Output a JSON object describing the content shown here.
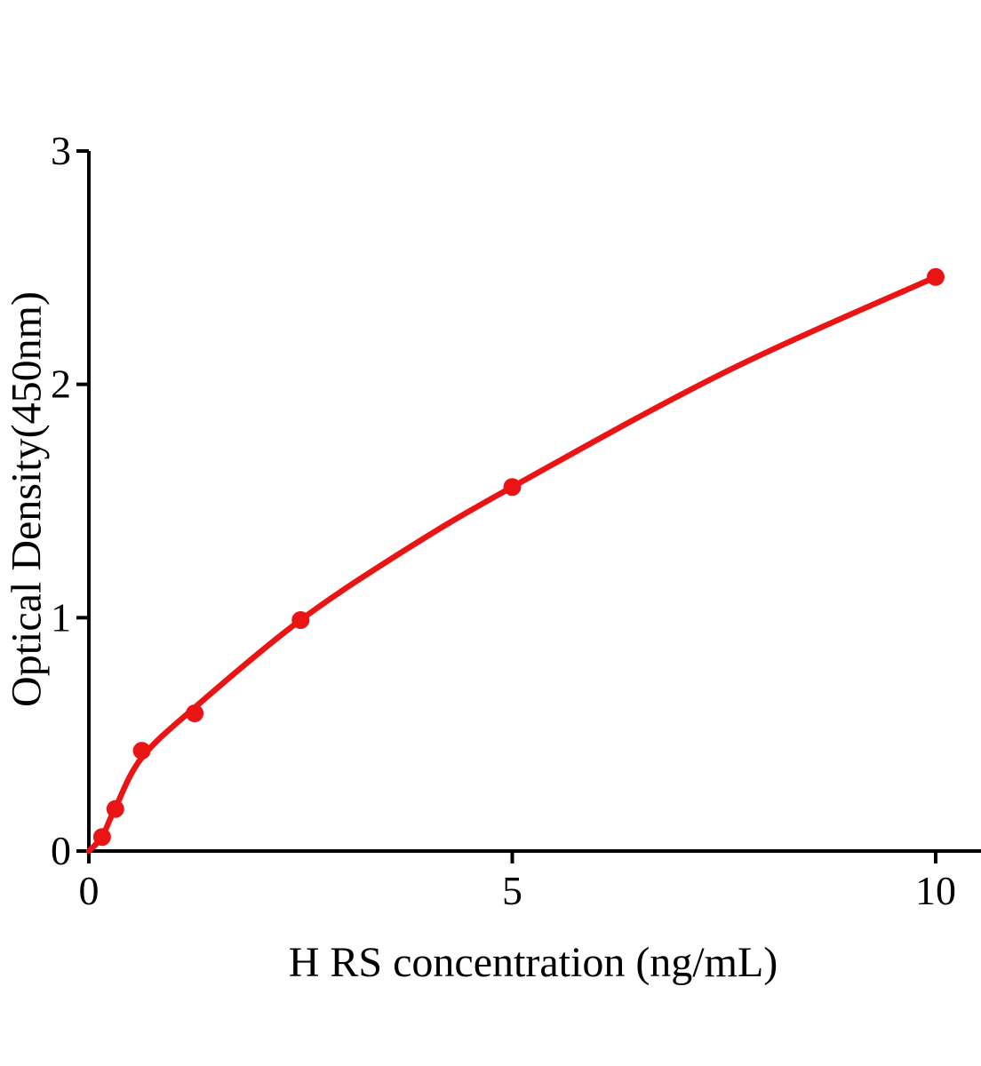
{
  "figure": {
    "background": "#ffffff",
    "text_color": "#000000"
  },
  "chart_data": {
    "type": "scatter",
    "title": "",
    "xlabel": "H RS concentration (ng/mL)",
    "ylabel": "Optical Density(450nm)",
    "x": [
      0.156,
      0.3125,
      0.625,
      1.25,
      2.5,
      5,
      10
    ],
    "y": [
      0.06,
      0.18,
      0.43,
      0.59,
      0.99,
      1.56,
      2.46
    ],
    "fit_curve": [
      [
        0,
        0
      ],
      [
        0.156,
        0.062
      ],
      [
        0.3125,
        0.185
      ],
      [
        0.625,
        0.4
      ],
      [
        1.25,
        0.615
      ],
      [
        2.5,
        0.99
      ],
      [
        3.78,
        1.3
      ],
      [
        5,
        1.56
      ],
      [
        7.5,
        2.05
      ],
      [
        10,
        2.46
      ]
    ],
    "xticks": [
      0,
      5,
      10
    ],
    "yticks": [
      0,
      1,
      2,
      3
    ],
    "xlim": [
      0,
      10.5
    ],
    "ylim": [
      0,
      3
    ],
    "grid": false,
    "legend_position": "none",
    "marker_color": "#eb1414",
    "line_color": "#eb1414",
    "axis_color": "#000000"
  }
}
